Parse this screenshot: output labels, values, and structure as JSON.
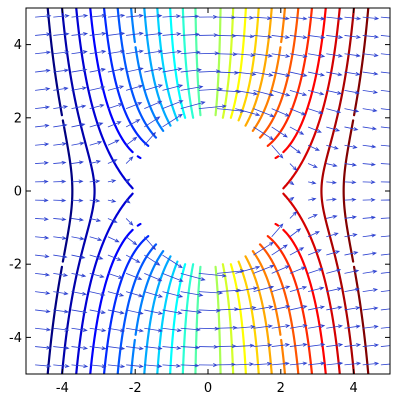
{
  "chart_data": {
    "type": "contour",
    "title": "",
    "xlabel": "",
    "ylabel": "",
    "xlim": [
      -5,
      5
    ],
    "ylim": [
      -5,
      5
    ],
    "xticks": [
      -4,
      -2,
      0,
      2,
      4
    ],
    "yticks": [
      -4,
      -2,
      0,
      2,
      4
    ],
    "xtick_labels": [
      "-4",
      "-2",
      "0",
      "2",
      "4"
    ],
    "ytick_labels": [
      "-4",
      "-2",
      "0",
      "2",
      "4"
    ],
    "grid": false,
    "hole_radius": 2.0,
    "contour_levels": [
      -4.8,
      -4.4,
      -4.0,
      -3.6,
      -3.2,
      -2.8,
      -2.4,
      -2.0,
      -1.6,
      -1.2,
      -0.8,
      -0.4,
      0.0,
      0.4,
      0.8,
      1.2,
      1.6,
      2.0,
      2.4,
      2.8,
      3.2,
      3.6,
      4.0,
      4.4,
      4.8
    ],
    "colormap": [
      "#00008f",
      "#0000ff",
      "#00ffff",
      "#ffff00",
      "#ff0000",
      "#800000"
    ],
    "quiver_color": "#2a3fd0",
    "quiver_grid_step": 0.5
  }
}
